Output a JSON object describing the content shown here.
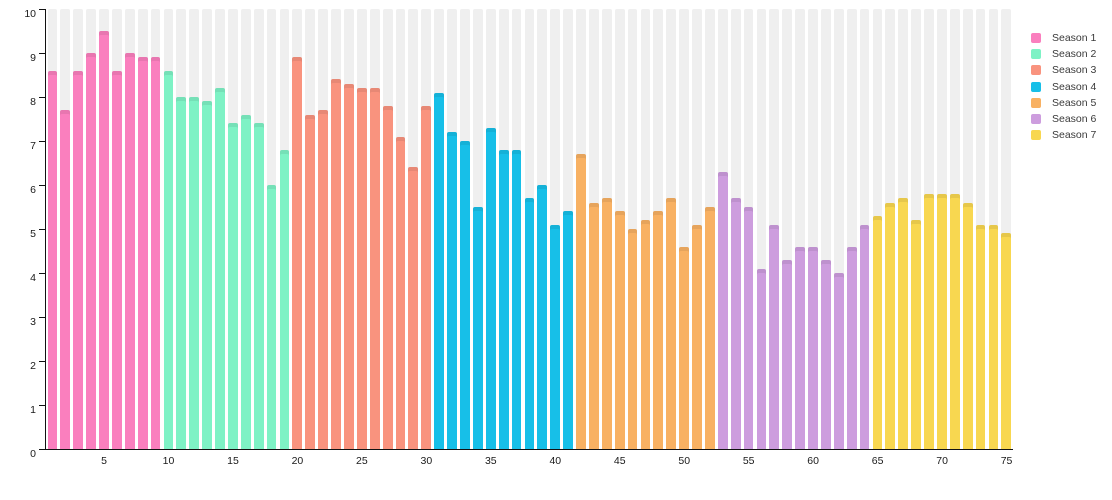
{
  "chart_data": {
    "type": "bar",
    "title": "",
    "xlabel": "",
    "ylabel": "",
    "ylim": [
      0,
      10
    ],
    "x_range": [
      1,
      75
    ],
    "grid": false,
    "background_track_color": "#efefef",
    "axis_color": "#111111",
    "legend_position": "right-outside-top",
    "yticks": [
      0,
      1,
      2,
      3,
      4,
      5,
      6,
      7,
      8,
      9,
      10
    ],
    "xticks": [
      5,
      10,
      15,
      20,
      25,
      30,
      35,
      40,
      45,
      50,
      55,
      60,
      65,
      70,
      75
    ],
    "series": [
      {
        "name": "Season 1",
        "color": "#fa7fbe",
        "episodes_start": 1,
        "values": [
          8.6,
          7.7,
          8.6,
          9.0,
          9.5,
          8.6,
          9.0,
          8.9,
          8.9
        ]
      },
      {
        "name": "Season 2",
        "color": "#7ef2c5",
        "episodes_start": 10,
        "values": [
          8.6,
          8.0,
          8.0,
          7.9,
          8.2,
          7.4,
          7.6,
          7.4,
          6.0,
          6.8
        ]
      },
      {
        "name": "Season 3",
        "color": "#f9937e",
        "episodes_start": 20,
        "values": [
          8.9,
          7.6,
          7.7,
          8.4,
          8.3,
          8.2,
          8.2,
          7.8,
          7.1,
          6.4,
          7.8
        ]
      },
      {
        "name": "Season 4",
        "color": "#17bfe8",
        "episodes_start": 31,
        "values": [
          8.1,
          7.2,
          7.0,
          5.5,
          7.3,
          6.8,
          6.8,
          5.7,
          6.0,
          5.1,
          5.4
        ]
      },
      {
        "name": "Season 5",
        "color": "#f8b163",
        "episodes_start": 42,
        "values": [
          6.7,
          5.6,
          5.7,
          5.4,
          5.0,
          5.2,
          5.4,
          5.7,
          4.6,
          5.1,
          5.5
        ]
      },
      {
        "name": "Season 6",
        "color": "#cd9dde",
        "episodes_start": 53,
        "values": [
          6.3,
          5.7,
          5.5,
          4.1,
          5.1,
          4.3,
          4.6,
          4.6,
          4.3,
          4.0,
          4.6,
          5.1
        ]
      },
      {
        "name": "Season 7",
        "color": "#f8d750",
        "episodes_start": 65,
        "values": [
          5.3,
          5.6,
          5.7,
          5.2,
          5.8,
          5.8,
          5.8,
          5.6,
          5.1,
          5.1,
          4.9
        ]
      }
    ]
  }
}
